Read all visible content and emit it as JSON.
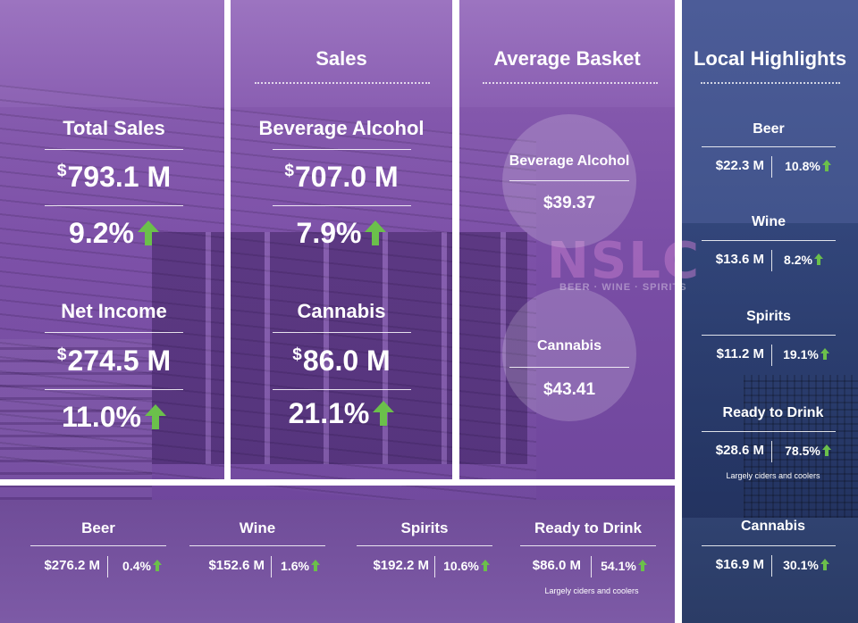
{
  "colors": {
    "arrow": "#6bc04b",
    "panel_purple": "#7a4ea6",
    "panel_blue": "#3f5289"
  },
  "logo": {
    "text": "NSLC",
    "sub": "BEER · WINE · SPIRITS"
  },
  "overview": {
    "total_sales_label": "Total Sales",
    "total_sales_value": "793.1 M",
    "total_sales_change": "9.2%",
    "net_income_label": "Net Income",
    "net_income_value": "274.5 M",
    "net_income_change": "11.0%",
    "currency": "$"
  },
  "sales": {
    "title": "Sales",
    "bev_label": "Beverage Alcohol",
    "bev_value": "707.0 M",
    "bev_change": "7.9%",
    "cannabis_label": "Cannabis",
    "cannabis_value": "86.0 M",
    "cannabis_change": "21.1%",
    "currency": "$"
  },
  "basket": {
    "title": "Average Basket",
    "bev_label": "Beverage Alcohol",
    "bev_value": "$39.37",
    "cannabis_label": "Cannabis",
    "cannabis_value": "$43.41"
  },
  "categories": [
    {
      "label": "Beer",
      "value": "$276.2 M",
      "change": "0.4%",
      "note": ""
    },
    {
      "label": "Wine",
      "value": "$152.6 M",
      "change": "1.6%",
      "note": ""
    },
    {
      "label": "Spirits",
      "value": "$192.2 M",
      "change": "10.6%",
      "note": ""
    },
    {
      "label": "Ready to Drink",
      "value": "$86.0 M",
      "change": "54.1%",
      "note": "Largely ciders and coolers"
    }
  ],
  "local": {
    "title": "Local Highlights",
    "items": [
      {
        "label": "Beer",
        "value": "$22.3 M",
        "change": "10.8%",
        "note": ""
      },
      {
        "label": "Wine",
        "value": "$13.6 M",
        "change": "8.2%",
        "note": ""
      },
      {
        "label": "Spirits",
        "value": "$11.2 M",
        "change": "19.1%",
        "note": ""
      },
      {
        "label": "Ready to Drink",
        "value": "$28.6 M",
        "change": "78.5%",
        "note": "Largely ciders and coolers"
      },
      {
        "label": "Cannabis",
        "value": "$16.9 M",
        "change": "30.1%",
        "note": ""
      }
    ]
  }
}
